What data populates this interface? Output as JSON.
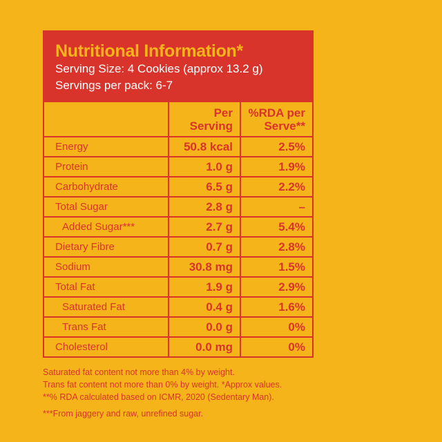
{
  "header": {
    "title": "Nutritional Information*",
    "serving_size": "Serving Size: 4 Cookies (approx 13.2 g)",
    "servings_per_pack": "Servings per pack: 6-7"
  },
  "table": {
    "columns": [
      "",
      "Per Serving",
      "%RDA per Serve**"
    ],
    "rows": [
      {
        "name": "Energy",
        "per_serving": "50.8 kcal",
        "rda": "2.5%",
        "indent": false
      },
      {
        "name": "Protein",
        "per_serving": "1.0 g",
        "rda": "1.9%",
        "indent": false
      },
      {
        "name": "Carbohydrate",
        "per_serving": "6.5 g",
        "rda": "2.2%",
        "indent": false
      },
      {
        "name": "Total Sugar",
        "per_serving": "2.8 g",
        "rda": "–",
        "indent": false
      },
      {
        "name": "Added Sugar***",
        "per_serving": "2.7 g",
        "rda": "5.4%",
        "indent": true
      },
      {
        "name": "Dietary Fibre",
        "per_serving": "0.7 g",
        "rda": "2.8%",
        "indent": false
      },
      {
        "name": "Sodium",
        "per_serving": "30.8 mg",
        "rda": "1.5%",
        "indent": false
      },
      {
        "name": "Total Fat",
        "per_serving": "1.9 g",
        "rda": "2.9%",
        "indent": false
      },
      {
        "name": "Saturated Fat",
        "per_serving": "0.4 g",
        "rda": "1.6%",
        "indent": true
      },
      {
        "name": "Trans Fat",
        "per_serving": "0.0 g",
        "rda": "0%",
        "indent": true
      },
      {
        "name": "Cholesterol",
        "per_serving": "0.0 mg",
        "rda": "0%",
        "indent": false
      }
    ]
  },
  "footnotes": [
    "Saturated fat content not more than 4% by weight.",
    "Trans fat content not more than 0% by weight. *Approx values.",
    "**% RDA calculated based on ICMR, 2020 (Sedentary Man).",
    "***From jaggery and raw, unrefined sugar."
  ],
  "colors": {
    "background": "#F5B41A",
    "accent": "#D9342B",
    "text_light": "#FFFFFF"
  }
}
